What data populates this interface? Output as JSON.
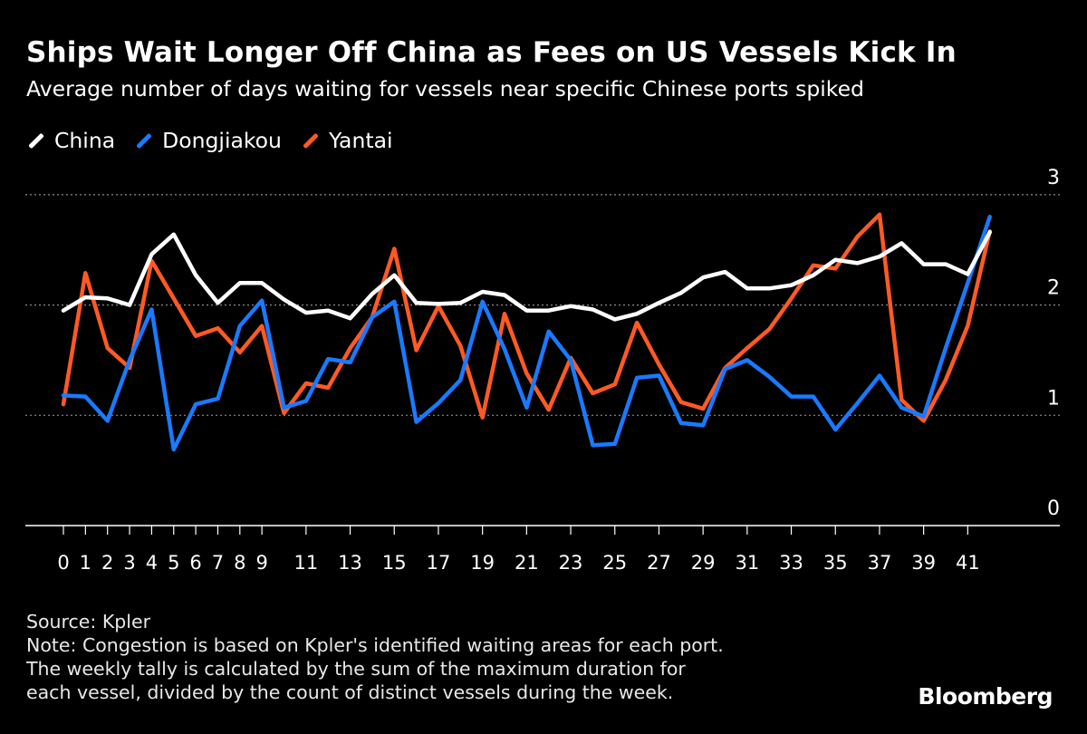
{
  "header": {
    "title": "Ships Wait Longer Off China as Fees on US Vessels Kick In",
    "subtitle": "Average number of days waiting for vessels near specific Chinese ports spiked"
  },
  "legend": [
    {
      "label": "China",
      "color": "#ffffff"
    },
    {
      "label": "Dongjiakou",
      "color": "#1a7aff"
    },
    {
      "label": "Yantai",
      "color": "#ff5a24"
    }
  ],
  "footer": {
    "source": "Source: Kpler",
    "note_lines": [
      "Note: Congestion is based on Kpler's identified waiting areas for each port.",
      "The weekly tally is calculated by the sum of the maximum duration for",
      "each vessel, divided by the count of distinct vessels during the week."
    ],
    "brand": "Bloomberg"
  },
  "chart_data": {
    "type": "line",
    "title": "Ships Wait Longer Off China as Fees on US Vessels Kick In",
    "xlabel": "",
    "ylabel": "",
    "ylim": [
      0,
      3
    ],
    "yticks": [
      0,
      1,
      2,
      3
    ],
    "grid": true,
    "legend_position": "top-left",
    "x": [
      0,
      1,
      2,
      3,
      4,
      5,
      6,
      7,
      8,
      9,
      10,
      11,
      12,
      13,
      14,
      15,
      16,
      17,
      18,
      19,
      20,
      21,
      22,
      23,
      24,
      25,
      26,
      27,
      28,
      29,
      30,
      31,
      32,
      33,
      34,
      35,
      36,
      37,
      38,
      39,
      40,
      41,
      42
    ],
    "xtick_labels": [
      "0",
      "1",
      "2",
      "3",
      "4",
      "5",
      "6",
      "7",
      "8",
      "9",
      "11",
      "13",
      "15",
      "17",
      "19",
      "21",
      "23",
      "25",
      "27",
      "29",
      "31",
      "33",
      "35",
      "37",
      "39",
      "41"
    ],
    "xtick_values": [
      0,
      1,
      2,
      3,
      4,
      5,
      6,
      7,
      8,
      9,
      11,
      13,
      15,
      17,
      19,
      21,
      23,
      25,
      27,
      29,
      31,
      33,
      35,
      37,
      39,
      41
    ],
    "series": [
      {
        "name": "China",
        "color": "#ffffff",
        "values": [
          1.95,
          2.07,
          2.06,
          2.0,
          2.46,
          2.64,
          2.27,
          2.02,
          2.2,
          2.2,
          2.05,
          1.93,
          1.95,
          1.88,
          2.1,
          2.27,
          2.02,
          2.01,
          2.02,
          2.12,
          2.09,
          1.95,
          1.95,
          1.99,
          1.96,
          1.87,
          1.92,
          2.02,
          2.11,
          2.25,
          2.3,
          2.15,
          2.15,
          2.18,
          2.27,
          2.41,
          2.38,
          2.44,
          2.56,
          2.37,
          2.37,
          2.28,
          2.66
        ]
      },
      {
        "name": "Dongjiakou",
        "color": "#1a7aff",
        "values": [
          1.18,
          1.17,
          0.95,
          1.5,
          1.96,
          0.69,
          1.1,
          1.15,
          1.81,
          2.04,
          1.07,
          1.13,
          1.51,
          1.48,
          1.89,
          2.03,
          0.94,
          1.11,
          1.32,
          2.03,
          1.6,
          1.07,
          1.76,
          1.5,
          0.73,
          0.74,
          1.34,
          1.36,
          0.93,
          0.91,
          1.42,
          1.5,
          1.35,
          1.17,
          1.17,
          0.87,
          1.11,
          1.36,
          1.07,
          0.99,
          1.61,
          2.2,
          2.8
        ]
      },
      {
        "name": "Yantai",
        "color": "#ff5a24",
        "values": [
          1.1,
          2.29,
          1.61,
          1.43,
          2.4,
          2.06,
          1.72,
          1.79,
          1.57,
          1.81,
          1.02,
          1.29,
          1.25,
          1.61,
          1.89,
          2.51,
          1.59,
          1.99,
          1.63,
          0.98,
          1.92,
          1.38,
          1.05,
          1.52,
          1.2,
          1.28,
          1.84,
          1.46,
          1.12,
          1.06,
          1.43,
          1.61,
          1.78,
          2.06,
          2.36,
          2.33,
          2.62,
          2.82,
          1.14,
          0.95,
          1.32,
          1.81,
          2.67
        ]
      }
    ]
  }
}
